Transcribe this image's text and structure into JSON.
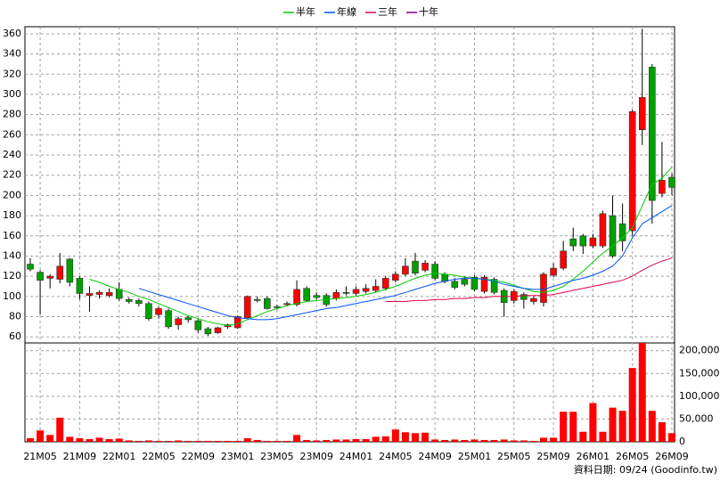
{
  "chart_data": {
    "type": "candlestick",
    "grid": true,
    "legend_position": "top",
    "categories": [
      null,
      "21M05",
      null,
      null,
      null,
      "21M09",
      null,
      null,
      null,
      "22M01",
      null,
      null,
      null,
      "22M05",
      null,
      null,
      null,
      "22M09",
      null,
      null,
      null,
      "23M01",
      null,
      null,
      null,
      "23M05",
      null,
      null,
      null,
      "23M09",
      null,
      null,
      null,
      "24M01",
      null,
      null,
      null,
      "24M05",
      null,
      null,
      null,
      "24M09",
      null,
      null,
      null,
      "25M01",
      null,
      null,
      null,
      "25M05",
      null,
      null,
      null,
      "25M09",
      null,
      null,
      null,
      "26M01",
      null,
      null,
      null,
      "26M05",
      null,
      null,
      null,
      "26M09"
    ],
    "open": [
      132,
      124,
      118,
      117,
      137,
      118,
      101,
      102,
      101,
      107,
      97,
      96,
      93,
      82,
      86,
      72,
      79,
      76,
      68,
      64,
      70,
      69,
      79,
      97,
      98,
      90,
      92,
      92,
      108,
      101,
      101,
      98,
      104,
      103,
      105,
      106,
      108,
      116,
      122,
      135,
      126,
      132,
      122,
      115,
      117,
      119,
      105,
      117,
      106,
      96,
      102,
      95,
      94,
      121,
      128,
      157,
      160,
      150,
      150,
      180,
      172,
      165,
      265,
      327,
      202,
      218
    ],
    "high": [
      138,
      126,
      122,
      143,
      138,
      120,
      110,
      106,
      108,
      114,
      99,
      98,
      95,
      90,
      88,
      80,
      81,
      78,
      70,
      70,
      73,
      81,
      101,
      100,
      100,
      92,
      95,
      116,
      110,
      104,
      103,
      107,
      110,
      110,
      112,
      117,
      120,
      125,
      138,
      143,
      136,
      135,
      124,
      118,
      120,
      121,
      121,
      119,
      108,
      107,
      104,
      100,
      124,
      133,
      155,
      168,
      162,
      162,
      185,
      200,
      192,
      285,
      365,
      330,
      253,
      222
    ],
    "low": [
      125,
      82,
      108,
      113,
      110,
      97,
      85,
      98,
      99,
      96,
      93,
      90,
      76,
      78,
      68,
      67,
      74,
      64,
      61,
      63,
      68,
      68,
      78,
      94,
      87,
      87,
      90,
      90,
      95,
      97,
      90,
      96,
      101,
      101,
      103,
      104,
      106,
      114,
      120,
      121,
      124,
      116,
      113,
      107,
      110,
      105,
      103,
      102,
      80,
      93,
      88,
      92,
      90,
      119,
      126,
      145,
      142,
      148,
      148,
      138,
      145,
      160,
      250,
      172,
      198,
      200
    ],
    "close": [
      127,
      116,
      120,
      130,
      114,
      103,
      103,
      104,
      104,
      98,
      95,
      93,
      78,
      88,
      70,
      78,
      77,
      67,
      63,
      69,
      72,
      80,
      100,
      96,
      88,
      89,
      93,
      107,
      96,
      99,
      92,
      104,
      103,
      107,
      108,
      110,
      118,
      122,
      130,
      123,
      133,
      118,
      115,
      109,
      112,
      107,
      119,
      104,
      94,
      105,
      97,
      98,
      122,
      128,
      145,
      150,
      150,
      158,
      182,
      140,
      155,
      283,
      297,
      195,
      215,
      208
    ],
    "up_color": "#ff0000",
    "down_color": "#00a000",
    "ylim": [
      54,
      367
    ],
    "yticks": [
      60,
      80,
      100,
      120,
      140,
      160,
      180,
      200,
      220,
      240,
      260,
      280,
      300,
      320,
      340,
      360
    ],
    "series": [
      {
        "name": "半年",
        "color": "#00cc00",
        "values": [
          null,
          null,
          null,
          null,
          null,
          null,
          117,
          114,
          110,
          107,
          104,
          100,
          97,
          93,
          89,
          85,
          81,
          78,
          75,
          73,
          71,
          73,
          77,
          81,
          85,
          88,
          91,
          93,
          95,
          96,
          97,
          98,
          99,
          100,
          102,
          104,
          107,
          110,
          114,
          118,
          121,
          123,
          122,
          121,
          119,
          118,
          117,
          116,
          114,
          111,
          108,
          105,
          104,
          106,
          110,
          117,
          125,
          134,
          143,
          150,
          158,
          168,
          190,
          211,
          217,
          228
        ]
      },
      {
        "name": "年線",
        "color": "#0050ff",
        "values": [
          null,
          null,
          null,
          null,
          null,
          null,
          null,
          null,
          null,
          null,
          null,
          108,
          105,
          102,
          99,
          96,
          93,
          90,
          87,
          84,
          81,
          79,
          78,
          77,
          77,
          78,
          80,
          82,
          84,
          86,
          88,
          89,
          91,
          93,
          95,
          97,
          99,
          101,
          104,
          107,
          110,
          113,
          115,
          117,
          118,
          118,
          117,
          115,
          112,
          110,
          108,
          107,
          107,
          110,
          113,
          116,
          118,
          121,
          125,
          130,
          140,
          158,
          172,
          178,
          184,
          190
        ]
      },
      {
        "name": "三年",
        "color": "#e00050",
        "values": [
          null,
          null,
          null,
          null,
          null,
          null,
          null,
          null,
          null,
          null,
          null,
          null,
          null,
          null,
          null,
          null,
          null,
          null,
          null,
          null,
          null,
          null,
          null,
          null,
          null,
          null,
          null,
          null,
          null,
          null,
          null,
          null,
          null,
          null,
          null,
          null,
          95,
          95,
          95,
          96,
          96,
          97,
          97,
          98,
          98,
          99,
          99,
          100,
          100,
          100,
          101,
          101,
          101,
          102,
          104,
          106,
          108,
          110,
          112,
          114,
          116,
          120,
          126,
          131,
          135,
          138
        ]
      },
      {
        "name": "十年",
        "color": "#800080",
        "values": [
          null,
          null,
          null,
          null,
          null,
          null,
          null,
          null,
          null,
          null,
          null,
          null,
          null,
          null,
          null,
          null,
          null,
          null,
          null,
          null,
          null,
          null,
          null,
          null,
          null,
          null,
          null,
          null,
          null,
          null,
          null,
          null,
          null,
          null,
          null,
          null,
          null,
          null,
          null,
          null,
          null,
          null,
          null,
          null,
          null,
          null,
          null,
          null,
          null,
          null,
          null,
          null,
          null,
          null,
          null,
          null,
          null,
          null,
          null,
          null,
          null,
          null,
          null,
          null,
          null,
          null
        ]
      }
    ],
    "volume": {
      "color": "#ff0000",
      "values": [
        8000,
        25000,
        15000,
        53000,
        11000,
        8000,
        6000,
        9000,
        6000,
        7000,
        3000,
        2000,
        3000,
        2000,
        2000,
        3000,
        2000,
        2000,
        2000,
        2000,
        2000,
        2000,
        8000,
        4000,
        2000,
        2000,
        2000,
        15000,
        4000,
        3000,
        4000,
        5000,
        5000,
        6000,
        6000,
        11000,
        12000,
        27000,
        21000,
        19000,
        20000,
        5000,
        4000,
        5000,
        4000,
        5000,
        4000,
        4000,
        5000,
        3000,
        3000,
        2000,
        9000,
        9000,
        66000,
        66000,
        22000,
        85000,
        22000,
        75000,
        68000,
        162000,
        217000,
        68000,
        43000,
        19000
      ],
      "ylim": [
        0,
        217000
      ],
      "yticks": [
        0,
        {
          "value": 50000,
          "label": "50,000"
        },
        {
          "value": 100000,
          "label": "100,000"
        },
        {
          "value": 150000,
          "label": "150,000"
        },
        {
          "value": 200000,
          "label": "200,000"
        }
      ]
    },
    "footer": "資料日期: 09/24  (Goodinfo.tw)"
  }
}
